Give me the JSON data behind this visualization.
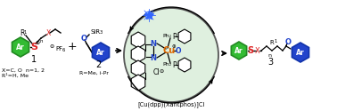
{
  "bg_color": "#ffffff",
  "circle_color": "#dff0df",
  "circle_edge": "#555555",
  "arrow_color": "#222222",
  "cat_label": "[Cu(dpp)(Xantphos)]Cl",
  "sub1_text1": "X=C, O  n=1, 2",
  "sub1_text2": "R¹=H, Me",
  "sub2_text": "R=Me, i-Pr",
  "ar_fill": "#33bb33",
  "ar_edge": "#228822",
  "ar2_fill": "#2244cc",
  "ar2_edge": "#1133aa",
  "s_color": "#dd2222",
  "x_color": "#dd2222",
  "o_color": "#2244cc",
  "n_color": "#2244cc",
  "cu_color": "#dd6600",
  "figsize": [
    3.78,
    1.25
  ],
  "dpi": 100
}
